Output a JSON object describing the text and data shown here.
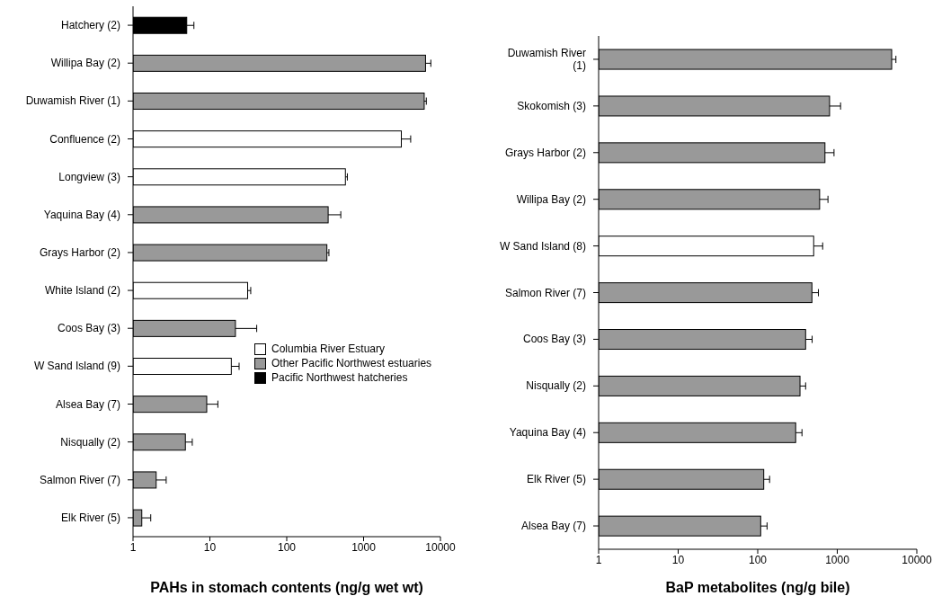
{
  "chart_data": [
    {
      "type": "bar",
      "orientation": "horizontal",
      "log": "x",
      "xlabel": "PAHs in stomach contents (ng/g wet wt)",
      "categories": [
        "Hatchery (2)",
        "Willipa Bay (2)",
        "Duwamish River (1)",
        "Confluence (2)",
        "Longview (3)",
        "Yaquina Bay (4)",
        "Grays Harbor (2)",
        "White Island (2)",
        "Coos Bay (3)",
        "W Sand Island (9)",
        "Alsea Bay (7)",
        "Nisqually (2)",
        "Salmon River (7)",
        "Elk River (5)"
      ],
      "series": [
        {
          "name": "Columbia River Estuary",
          "color": "#ffffff",
          "values": [
            null,
            null,
            null,
            3100,
            580,
            null,
            null,
            31,
            null,
            19,
            null,
            null,
            null,
            null
          ],
          "errors": [
            null,
            null,
            null,
            [
              3100,
              4100
            ],
            [
              580,
              615
            ],
            null,
            null,
            [
              31,
              34
            ],
            null,
            [
              19,
              24
            ],
            null,
            null,
            null,
            null
          ]
        },
        {
          "name": "Other Pacific Northwest estuaries",
          "color": "#999999",
          "values": [
            null,
            6400,
            6150,
            null,
            null,
            346,
            333,
            null,
            21.5,
            null,
            9.1,
            4.8,
            2.0,
            1.3
          ],
          "errors": [
            null,
            [
              6400,
              7500
            ],
            [
              6150,
              6550
            ],
            null,
            null,
            [
              346,
              505
            ],
            [
              333,
              354
            ],
            null,
            [
              21.5,
              40.7
            ],
            null,
            [
              9.1,
              12.7
            ],
            [
              4.8,
              5.9
            ],
            [
              2.0,
              2.7
            ],
            [
              1.3,
              1.7
            ]
          ]
        },
        {
          "name": "Pacific Northwest hatcheries",
          "color": "#000000",
          "values": [
            5.0,
            null,
            null,
            null,
            null,
            null,
            null,
            null,
            null,
            null,
            null,
            null,
            null,
            null
          ],
          "errors": [
            [
              5.0,
              6.2
            ],
            null,
            null,
            null,
            null,
            null,
            null,
            null,
            null,
            null,
            null,
            null,
            null,
            null
          ]
        }
      ],
      "xlim": [
        1,
        10000
      ],
      "xticks": [
        1,
        10,
        100,
        1000,
        10000
      ],
      "legend": "right"
    },
    {
      "type": "bar",
      "orientation": "horizontal",
      "log": "x",
      "xlabel": "BaP metabolites (ng/g bile)",
      "categories": [
        "Duwamish River (1)",
        "Skokomish (3)",
        "Grays Harbor (2)",
        "Willipa Bay (2)",
        "W Sand Island (8)",
        "Salmon River (7)",
        "Coos Bay (3)",
        "Nisqually (2)",
        "Yaquina Bay (4)",
        "Elk River (5)",
        "Alsea Bay (7)"
      ],
      "series": [
        {
          "color": "#ffffff",
          "values": [
            null,
            null,
            null,
            null,
            505,
            null,
            null,
            null,
            null,
            null,
            null
          ],
          "errors": [
            null,
            null,
            null,
            null,
            [
              505,
              655
            ],
            null,
            null,
            null,
            null,
            null,
            null
          ]
        },
        {
          "color": "#999999",
          "values": [
            4830,
            800,
            700,
            600,
            null,
            480,
            400,
            340,
            300,
            119,
            109
          ],
          "errors": [
            [
              4830,
              5460
            ],
            [
              800,
              1100
            ],
            [
              700,
              910
            ],
            [
              600,
              764
            ],
            null,
            [
              480,
              579
            ],
            [
              400,
              483
            ],
            [
              340,
              400
            ],
            [
              300,
              360
            ],
            [
              119,
              141
            ],
            [
              109,
              131
            ]
          ]
        }
      ],
      "xlim": [
        1,
        10000
      ],
      "xticks": [
        1,
        10,
        100,
        1000,
        10000
      ]
    }
  ]
}
